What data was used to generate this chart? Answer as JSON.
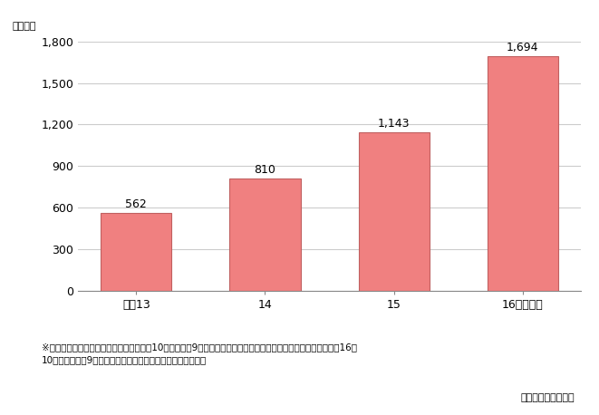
{
  "categories": [
    "平成13",
    "14",
    "15",
    "16（年度）"
  ],
  "values": [
    562,
    810,
    1143,
    1694
  ],
  "bar_color": "#F08080",
  "bar_edge_color": "#C06060",
  "ylim": [
    0,
    1800
  ],
  "yticks": [
    0,
    300,
    600,
    900,
    1200,
    1500,
    1800
  ],
  "ylabel_unit": "（億円）",
  "value_labels": [
    "562",
    "810",
    "1,143",
    "1,694"
  ],
  "footnote_line1": "※　決算月が各社具なる。決算年度は各年10月から次年9月までに決算を迎える年度のこととした。例えば、平成16年",
  "footnote_line2": "10月から１７年9月までに決算を迎える年度を１６年度とした",
  "source_text": "各社資料により作成",
  "bg_color": "#ffffff",
  "grid_color": "#cccccc"
}
